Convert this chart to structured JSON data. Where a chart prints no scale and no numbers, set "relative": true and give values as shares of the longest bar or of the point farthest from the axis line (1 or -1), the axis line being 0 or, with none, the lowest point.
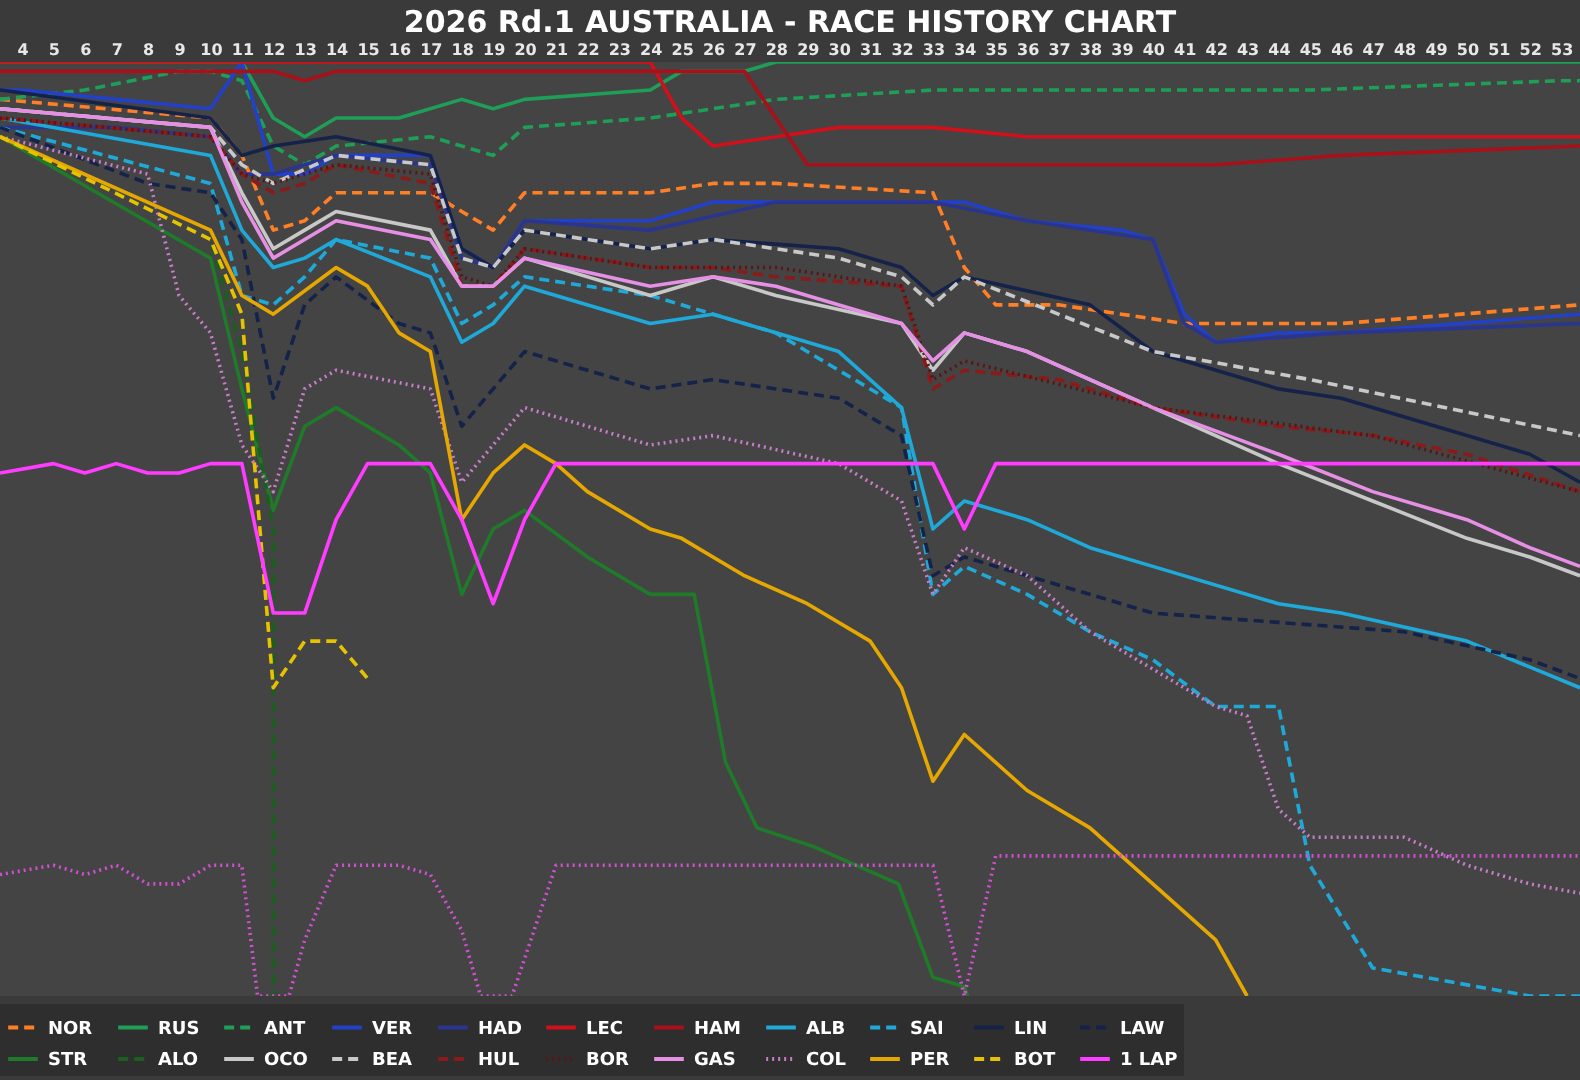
{
  "chart_data": {
    "type": "line",
    "title": "2026 Rd.1 AUSTRALIA - RACE HISTORY CHART",
    "relative": true,
    "legend": "bottom",
    "xlim": [
      3.3,
      53.6
    ],
    "xticks": [
      4,
      5,
      6,
      7,
      8,
      9,
      10,
      11,
      12,
      13,
      14,
      15,
      16,
      17,
      18,
      19,
      20,
      21,
      22,
      23,
      24,
      25,
      26,
      27,
      28,
      29,
      30,
      31,
      32,
      33,
      34,
      35,
      36,
      37,
      38,
      39,
      40,
      41,
      42,
      43,
      44,
      45,
      46,
      47,
      48,
      49,
      50,
      51,
      52,
      53
    ],
    "series": [
      {
        "name": "NOR",
        "color": "#ff7f27",
        "line_style": "dashed",
        "x": [
          3.3,
          10,
          11,
          12,
          13,
          14,
          17,
          18,
          19,
          20,
          24,
          26,
          28,
          33,
          34,
          35,
          37,
          39,
          41,
          44,
          46,
          53.6
        ],
        "values": [
          0.96,
          0.94,
          0.9,
          0.82,
          0.83,
          0.86,
          0.86,
          0.84,
          0.82,
          0.86,
          0.86,
          0.87,
          0.87,
          0.86,
          0.78,
          0.74,
          0.74,
          0.73,
          0.72,
          0.72,
          0.72,
          0.74
        ]
      },
      {
        "name": "RUS",
        "color": "#1e9e57",
        "line_style": "solid",
        "x": [
          3.3,
          11,
          12,
          13,
          14,
          16,
          18,
          19,
          20,
          24,
          25,
          27,
          28,
          53.6
        ],
        "values": [
          1.0,
          1.0,
          0.94,
          0.92,
          0.94,
          0.94,
          0.96,
          0.95,
          0.96,
          0.97,
          0.99,
          0.99,
          1.0,
          1.0
        ]
      },
      {
        "name": "ANT",
        "color": "#1e9e57",
        "line_style": "dashed",
        "x": [
          3.3,
          6,
          9,
          10,
          11,
          12,
          13,
          14,
          17,
          19,
          20,
          24,
          28,
          33,
          45,
          53,
          53.6
        ],
        "values": [
          0.96,
          0.97,
          0.99,
          0.99,
          0.98,
          0.91,
          0.89,
          0.91,
          0.92,
          0.9,
          0.93,
          0.94,
          0.96,
          0.97,
          0.97,
          0.98,
          0.98
        ]
      },
      {
        "name": "VER",
        "color": "#2340c8",
        "line_style": "solid",
        "x": [
          3.3,
          4,
          7,
          10,
          11,
          12,
          13,
          14,
          17,
          18,
          19,
          20,
          24,
          26,
          28,
          33,
          34,
          36,
          39,
          40,
          41,
          42,
          44,
          46,
          53.6
        ],
        "values": [
          0.97,
          0.97,
          0.96,
          0.95,
          1.0,
          0.88,
          0.88,
          0.9,
          0.9,
          0.8,
          0.78,
          0.83,
          0.83,
          0.85,
          0.85,
          0.85,
          0.85,
          0.83,
          0.82,
          0.81,
          0.73,
          0.7,
          0.71,
          0.71,
          0.73
        ]
      },
      {
        "name": "HAD",
        "color": "#2a3590",
        "line_style": "solid",
        "x": [
          3.3,
          7,
          10,
          11,
          12,
          14,
          17,
          18,
          19,
          20,
          24,
          28,
          33,
          36,
          40,
          41,
          42,
          46,
          53.6
        ],
        "values": [
          0.93,
          0.93,
          0.92,
          0.88,
          0.88,
          0.9,
          0.89,
          0.79,
          0.78,
          0.83,
          0.82,
          0.85,
          0.85,
          0.83,
          0.81,
          0.72,
          0.7,
          0.71,
          0.72
        ]
      },
      {
        "name": "LEC",
        "color": "#d0101a",
        "line_style": "solid",
        "x": [
          3.3,
          24,
          25,
          26,
          28,
          30,
          33,
          36,
          42,
          46,
          50,
          53.6
        ],
        "values": [
          1.0,
          1.0,
          0.94,
          0.91,
          0.92,
          0.93,
          0.93,
          0.92,
          0.92,
          0.92,
          0.92,
          0.92
        ]
      },
      {
        "name": "HAM",
        "color": "#a8101a",
        "line_style": "solid",
        "x": [
          3.3,
          7,
          9,
          12,
          13,
          14,
          17,
          18,
          19,
          20,
          24,
          27,
          29,
          33,
          36,
          40,
          42,
          46,
          53.6
        ],
        "values": [
          0.99,
          0.99,
          0.99,
          0.99,
          0.98,
          0.99,
          0.99,
          0.99,
          0.99,
          0.99,
          0.99,
          0.99,
          0.89,
          0.89,
          0.89,
          0.89,
          0.89,
          0.9,
          0.91
        ]
      },
      {
        "name": "ALB",
        "color": "#1fa9d9",
        "line_style": "solid",
        "x": [
          3.3,
          10,
          11,
          12,
          13,
          14,
          17,
          18,
          19,
          20,
          24,
          26,
          30,
          32,
          33,
          34,
          36,
          38,
          40,
          44,
          46,
          50,
          53.6
        ],
        "values": [
          0.94,
          0.9,
          0.82,
          0.78,
          0.79,
          0.81,
          0.77,
          0.7,
          0.72,
          0.76,
          0.72,
          0.73,
          0.69,
          0.63,
          0.5,
          0.53,
          0.51,
          0.48,
          0.46,
          0.42,
          0.41,
          0.38,
          0.33
        ]
      },
      {
        "name": "SAI",
        "color": "#1fa9d9",
        "line_style": "dashed",
        "x": [
          3.3,
          10,
          11,
          12,
          13,
          14,
          17,
          18,
          19,
          20,
          24,
          28,
          32,
          33,
          34,
          36,
          38,
          40,
          42,
          44,
          45,
          47,
          52,
          53.6
        ],
        "values": [
          0.93,
          0.87,
          0.75,
          0.74,
          0.77,
          0.81,
          0.79,
          0.72,
          0.74,
          0.77,
          0.75,
          0.71,
          0.63,
          0.43,
          0.46,
          0.43,
          0.39,
          0.36,
          0.31,
          0.31,
          0.14,
          0.03,
          0.0,
          0.0
        ]
      },
      {
        "name": "LIN",
        "color": "#15234a",
        "line_style": "solid",
        "x": [
          3.3,
          10,
          11,
          12,
          14,
          17,
          18,
          19,
          20,
          24,
          26,
          30,
          32,
          33,
          34,
          38,
          40,
          44,
          46,
          50,
          52,
          53.6
        ],
        "values": [
          0.97,
          0.94,
          0.9,
          0.91,
          0.92,
          0.9,
          0.8,
          0.78,
          0.82,
          0.8,
          0.81,
          0.8,
          0.78,
          0.75,
          0.77,
          0.74,
          0.69,
          0.65,
          0.64,
          0.6,
          0.58,
          0.55
        ]
      },
      {
        "name": "LAW",
        "color": "#15234a",
        "line_style": "dashed",
        "x": [
          3.3,
          8,
          10,
          11,
          12,
          13,
          14,
          16,
          17,
          18,
          20,
          24,
          26,
          30,
          32,
          33,
          34,
          36,
          40,
          44,
          48,
          52,
          53.6
        ],
        "values": [
          0.93,
          0.87,
          0.86,
          0.81,
          0.64,
          0.74,
          0.77,
          0.72,
          0.71,
          0.61,
          0.69,
          0.65,
          0.66,
          0.64,
          0.6,
          0.45,
          0.47,
          0.45,
          0.41,
          0.4,
          0.39,
          0.36,
          0.34
        ]
      },
      {
        "name": "STR",
        "color": "#1f7a2a",
        "line_style": "solid",
        "x": [
          3.3,
          10,
          11,
          12,
          13,
          14,
          16,
          17,
          18,
          19,
          20,
          22,
          24,
          25.4,
          26.4,
          27.4,
          29.2,
          31.9,
          33,
          34,
          34.1
        ],
        "values": [
          0.92,
          0.79,
          0.65,
          0.52,
          0.61,
          0.63,
          0.59,
          0.56,
          0.43,
          0.5,
          0.52,
          0.47,
          0.43,
          0.43,
          0.25,
          0.18,
          0.16,
          0.12,
          0.02,
          0.01,
          0.0
        ]
      },
      {
        "name": "ALO",
        "color": "#1b5e20",
        "line_style": "dashed",
        "x": [
          3.3,
          10,
          11,
          12,
          12
        ],
        "values": [
          0.92,
          0.81,
          0.69,
          0.5,
          0.0
        ]
      },
      {
        "name": "OCO",
        "color": "#c8c8c8",
        "line_style": "solid",
        "x": [
          3.3,
          10,
          11,
          12,
          13,
          14,
          17,
          18,
          19,
          20,
          24,
          26,
          28,
          32,
          33,
          34,
          36,
          40,
          44,
          47,
          50,
          52,
          53.6
        ],
        "values": [
          0.95,
          0.93,
          0.86,
          0.8,
          0.82,
          0.84,
          0.82,
          0.76,
          0.76,
          0.79,
          0.75,
          0.77,
          0.75,
          0.72,
          0.67,
          0.71,
          0.69,
          0.63,
          0.57,
          0.53,
          0.49,
          0.47,
          0.45
        ]
      },
      {
        "name": "BEA",
        "color": "#c8c8c8",
        "line_style": "dashed",
        "x": [
          3.3,
          10,
          11,
          12,
          14,
          17,
          18,
          19,
          20,
          24,
          26,
          30,
          32,
          33,
          34,
          40,
          45,
          53.6
        ],
        "values": [
          0.95,
          0.93,
          0.89,
          0.87,
          0.9,
          0.89,
          0.79,
          0.78,
          0.82,
          0.8,
          0.81,
          0.79,
          0.77,
          0.74,
          0.77,
          0.69,
          0.66,
          0.6
        ]
      },
      {
        "name": "HUL",
        "color": "#8b1a1a",
        "line_style": "dashed",
        "x": [
          3.3,
          10,
          11,
          12,
          13,
          14,
          17,
          18,
          19,
          20,
          24,
          26,
          28,
          32,
          33,
          34,
          37,
          40,
          44,
          47,
          50,
          53.6
        ],
        "values": [
          0.94,
          0.92,
          0.88,
          0.86,
          0.87,
          0.89,
          0.87,
          0.76,
          0.76,
          0.8,
          0.78,
          0.78,
          0.77,
          0.76,
          0.65,
          0.67,
          0.66,
          0.63,
          0.61,
          0.6,
          0.58,
          0.54
        ]
      },
      {
        "name": "BOR",
        "color": "#5a1515",
        "line_style": "dotted",
        "x": [
          3.3,
          10,
          11,
          12,
          14,
          17,
          18,
          19,
          20,
          24,
          28,
          32,
          33,
          34,
          40,
          47,
          53.6
        ],
        "values": [
          0.94,
          0.92,
          0.88,
          0.87,
          0.89,
          0.88,
          0.77,
          0.76,
          0.8,
          0.78,
          0.78,
          0.76,
          0.66,
          0.68,
          0.63,
          0.6,
          0.54
        ]
      },
      {
        "name": "GAS",
        "color": "#e58fe5",
        "line_style": "solid",
        "x": [
          3.3,
          10,
          11,
          12,
          13,
          14,
          17,
          18,
          19,
          20,
          24,
          26,
          28,
          32,
          33,
          34,
          36,
          40,
          44,
          47,
          50,
          52,
          53.6
        ],
        "values": [
          0.95,
          0.93,
          0.85,
          0.79,
          0.81,
          0.83,
          0.81,
          0.76,
          0.76,
          0.79,
          0.76,
          0.77,
          0.76,
          0.72,
          0.68,
          0.71,
          0.69,
          0.63,
          0.58,
          0.54,
          0.51,
          0.48,
          0.46
        ]
      },
      {
        "name": "COL",
        "color": "#c77dc7",
        "line_style": "dotted",
        "x": [
          3.3,
          8,
          9,
          10,
          11,
          12,
          13,
          14,
          17,
          18,
          20,
          24,
          26,
          30,
          32,
          33,
          34,
          36,
          38,
          40,
          42,
          43,
          44,
          45,
          48,
          50,
          52,
          53.6
        ],
        "values": [
          0.92,
          0.88,
          0.75,
          0.71,
          0.59,
          0.54,
          0.65,
          0.67,
          0.65,
          0.55,
          0.63,
          0.59,
          0.6,
          0.57,
          0.53,
          0.43,
          0.48,
          0.45,
          0.39,
          0.35,
          0.31,
          0.3,
          0.2,
          0.17,
          0.17,
          0.14,
          0.12,
          0.11
        ]
      },
      {
        "name": "PER",
        "color": "#e6a800",
        "line_style": "solid",
        "x": [
          3.3,
          10,
          11,
          12,
          14,
          15,
          16,
          17,
          18,
          19,
          20,
          21,
          22,
          24,
          25,
          27,
          29,
          31,
          32,
          33,
          34,
          36,
          38,
          40,
          41,
          42,
          43
        ],
        "values": [
          0.92,
          0.82,
          0.75,
          0.73,
          0.78,
          0.76,
          0.71,
          0.69,
          0.51,
          0.56,
          0.59,
          0.57,
          0.54,
          0.5,
          0.49,
          0.45,
          0.42,
          0.38,
          0.33,
          0.23,
          0.28,
          0.22,
          0.18,
          0.12,
          0.09,
          0.06,
          0.0
        ]
      },
      {
        "name": "BOT",
        "color": "#e6c200",
        "line_style": "dashed",
        "x": [
          3.3,
          10,
          11,
          12,
          13,
          14,
          15
        ],
        "values": [
          0.92,
          0.81,
          0.73,
          0.33,
          0.38,
          0.38,
          0.34
        ]
      },
      {
        "name": "1 LAP",
        "color": "#ff3cff",
        "line_style": "solid",
        "x": [
          3.3,
          5,
          6,
          7,
          8,
          9,
          10,
          11,
          12,
          13,
          14,
          15,
          17,
          18,
          19,
          20,
          21,
          33,
          34,
          35,
          53.6
        ],
        "values": [
          0.56,
          0.57,
          0.56,
          0.57,
          0.56,
          0.56,
          0.57,
          0.57,
          0.41,
          0.41,
          0.51,
          0.57,
          0.57,
          0.51,
          0.42,
          0.51,
          0.57,
          0.57,
          0.5,
          0.57,
          0.57
        ]
      },
      {
        "color": "#d050d0",
        "line_style": "dotted",
        "x": [
          3.3,
          5,
          6,
          7,
          8,
          9,
          10,
          11,
          11.5,
          12.5,
          13,
          14,
          15,
          16,
          17,
          18,
          18.6,
          19.6,
          20,
          21,
          33,
          34,
          35,
          53.6
        ],
        "values": [
          0.13,
          0.14,
          0.13,
          0.14,
          0.12,
          0.12,
          0.14,
          0.14,
          0.0,
          0.0,
          0.06,
          0.14,
          0.14,
          0.14,
          0.13,
          0.07,
          0.0,
          0.0,
          0.04,
          0.14,
          0.14,
          0.0,
          0.15,
          0.15
        ]
      }
    ]
  }
}
